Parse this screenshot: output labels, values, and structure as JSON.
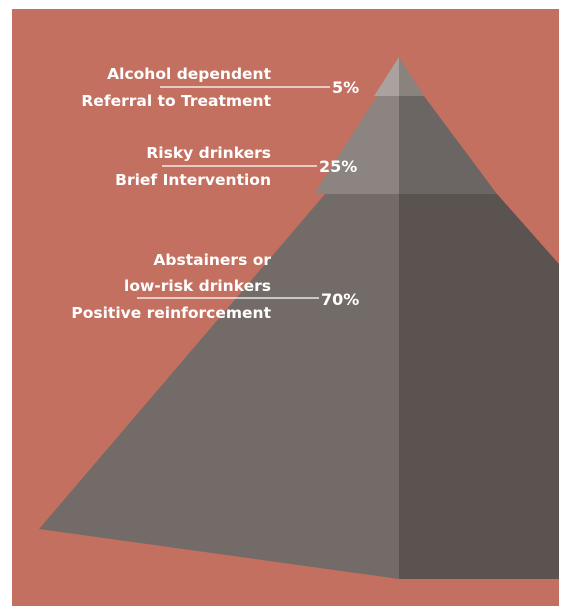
{
  "colors": {
    "background": "#C47060",
    "tier_top_light": "#AAA29E",
    "tier_top_dark": "#8A827D",
    "tier_mid_light": "#8B8480",
    "tier_mid_dark": "#6B6663",
    "tier_base_light": "#736B68",
    "tier_base_dark": "#5B534F",
    "text": "#FFFFFF"
  },
  "tiers": [
    {
      "id": "top",
      "lines": [
        "Alcohol dependent",
        "Referral to Treatment"
      ],
      "percent": "5%"
    },
    {
      "id": "middle",
      "lines": [
        "Risky drinkers",
        "Brief Intervention"
      ],
      "percent": "25%"
    },
    {
      "id": "base",
      "lines": [
        "Abstainers or",
        "low-risk drinkers",
        "Positive reinforcement"
      ],
      "percent": "70%"
    }
  ]
}
